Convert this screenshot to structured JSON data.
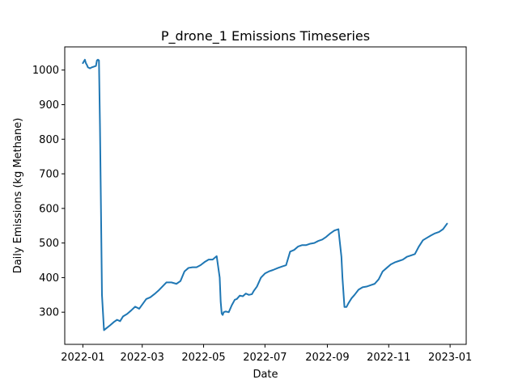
{
  "colors": {
    "series": "#1f77b4",
    "axes": "#000000",
    "background": "#ffffff"
  },
  "chart_data": {
    "type": "line",
    "title": "P_drone_1 Emissions Timeseries",
    "xlabel": "Date",
    "ylabel": "Daily Emissions (kg Methane)",
    "grid": false,
    "legend": "none",
    "xlim": [
      "2021-12-14",
      "2023-01-17"
    ],
    "ylim": [
      207,
      1067
    ],
    "x_ticks": [
      "2022-01",
      "2022-03",
      "2022-05",
      "2022-07",
      "2022-09",
      "2022-11",
      "2023-01"
    ],
    "y_ticks": [
      300,
      400,
      500,
      600,
      700,
      800,
      900,
      1000
    ],
    "series": [
      {
        "x": [
          "2022-01-01",
          "2022-01-03",
          "2022-01-04",
          "2022-01-05",
          "2022-01-06",
          "2022-01-08",
          "2022-01-10",
          "2022-01-12",
          "2022-01-14",
          "2022-01-15",
          "2022-01-16",
          "2022-01-17",
          "2022-01-18",
          "2022-01-19",
          "2022-01-20",
          "2022-01-22",
          "2022-01-25",
          "2022-01-28",
          "2022-02-01",
          "2022-02-04",
          "2022-02-07",
          "2022-02-10",
          "2022-02-14",
          "2022-02-18",
          "2022-02-22",
          "2022-02-26",
          "2022-03-01",
          "2022-03-05",
          "2022-03-09",
          "2022-03-13",
          "2022-03-17",
          "2022-03-21",
          "2022-03-25",
          "2022-03-30",
          "2022-04-04",
          "2022-04-08",
          "2022-04-12",
          "2022-04-16",
          "2022-04-20",
          "2022-04-24",
          "2022-04-28",
          "2022-05-02",
          "2022-05-06",
          "2022-05-10",
          "2022-05-14",
          "2022-05-17",
          "2022-05-18",
          "2022-05-19",
          "2022-05-20",
          "2022-05-21",
          "2022-05-23",
          "2022-05-26",
          "2022-05-29",
          "2022-06-01",
          "2022-06-03",
          "2022-06-06",
          "2022-06-09",
          "2022-06-12",
          "2022-06-15",
          "2022-06-18",
          "2022-06-20",
          "2022-06-23",
          "2022-06-27",
          "2022-07-01",
          "2022-07-05",
          "2022-07-09",
          "2022-07-14",
          "2022-07-18",
          "2022-07-22",
          "2022-07-26",
          "2022-07-30",
          "2022-08-03",
          "2022-08-07",
          "2022-08-11",
          "2022-08-15",
          "2022-08-19",
          "2022-08-23",
          "2022-08-27",
          "2022-08-31",
          "2022-09-04",
          "2022-09-08",
          "2022-09-12",
          "2022-09-15",
          "2022-09-16",
          "2022-09-18",
          "2022-09-20",
          "2022-09-22",
          "2022-09-25",
          "2022-09-28",
          "2022-10-02",
          "2022-10-06",
          "2022-10-10",
          "2022-10-14",
          "2022-10-18",
          "2022-10-22",
          "2022-10-26",
          "2022-10-30",
          "2022-11-03",
          "2022-11-07",
          "2022-11-11",
          "2022-11-15",
          "2022-11-19",
          "2022-11-23",
          "2022-11-27",
          "2022-12-01",
          "2022-12-05",
          "2022-12-09",
          "2022-12-13",
          "2022-12-17",
          "2022-12-21",
          "2022-12-25",
          "2022-12-29"
        ],
        "y": [
          1020,
          1030,
          1020,
          1015,
          1008,
          1005,
          1008,
          1010,
          1012,
          1028,
          1030,
          1028,
          840,
          600,
          350,
          248,
          255,
          262,
          272,
          278,
          274,
          288,
          295,
          305,
          316,
          310,
          322,
          338,
          343,
          352,
          362,
          374,
          386,
          386,
          382,
          390,
          418,
          428,
          430,
          430,
          436,
          445,
          452,
          452,
          462,
          400,
          330,
          296,
          292,
          300,
          302,
          300,
          320,
          336,
          338,
          348,
          346,
          354,
          350,
          352,
          362,
          374,
          400,
          412,
          418,
          422,
          428,
          432,
          436,
          475,
          480,
          490,
          494,
          494,
          498,
          500,
          506,
          510,
          518,
          528,
          536,
          540,
          460,
          400,
          315,
          315,
          326,
          340,
          350,
          365,
          372,
          374,
          378,
          382,
          395,
          418,
          428,
          438,
          444,
          448,
          452,
          460,
          464,
          468,
          490,
          508,
          515,
          522,
          528,
          532,
          540,
          556
        ]
      }
    ]
  }
}
